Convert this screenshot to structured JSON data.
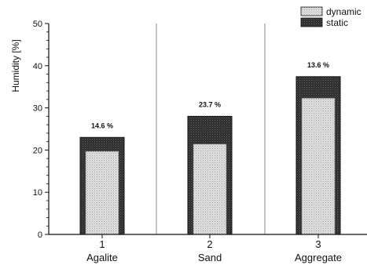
{
  "chart_data": {
    "type": "bar",
    "stacked": true,
    "categories": [
      "1",
      "2",
      "3"
    ],
    "category_names": [
      "Agalite",
      "Sand",
      "Aggregate"
    ],
    "series": [
      {
        "name": "dynamic",
        "values": [
          19.7,
          21.4,
          32.3
        ],
        "color": "#d8d8d8"
      },
      {
        "name": "static",
        "values": [
          3.3,
          6.6,
          5.1
        ],
        "color": "#2e2e2e"
      }
    ],
    "totals": [
      23.0,
      28.0,
      37.4
    ],
    "annotations": [
      "14.6 %",
      "23.7 %",
      "13.6 %"
    ],
    "ylabel": "Humidity [%]",
    "xlabel": "",
    "title": "",
    "ylim": [
      0,
      50
    ],
    "yticks": [
      0,
      10,
      20,
      30,
      40,
      50
    ],
    "grid": false,
    "category_separators": true,
    "legend_position": "top-right"
  }
}
